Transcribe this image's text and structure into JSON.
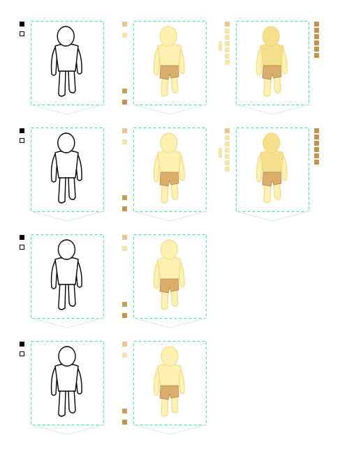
{
  "colors": {
    "background": "#ffffff",
    "frame": "#4ee89a",
    "floor": "#d9e6e0",
    "outline": "#000000",
    "skin": "#fff1b2",
    "skin_shade": "#f6df8c",
    "skin_dark": "#e9c96a",
    "skin_stroke": "#f0d47a",
    "shorts": "#d8ae6a",
    "shorts_dark": "#b9893f",
    "swatch_light": "#f4e6a8",
    "swatch_tan": "#e9c68e",
    "swatch_brown": "#c99c5a",
    "swatch_dark": "#c1934f"
  },
  "rows": [
    {
      "name": "row-1",
      "figures": [
        {
          "style": "outline",
          "pose": "front-left",
          "shorts": false
        },
        {
          "style": "skin",
          "pose": "front-left",
          "shorts": true
        },
        {
          "style": "skin-shaded",
          "pose": "front-left",
          "shorts": true
        }
      ]
    },
    {
      "name": "row-2",
      "figures": [
        {
          "style": "outline",
          "pose": "left",
          "shorts": false
        },
        {
          "style": "skin",
          "pose": "left",
          "shorts": true
        },
        {
          "style": "skin-shaded",
          "pose": "left",
          "shorts": true
        }
      ]
    },
    {
      "name": "row-3",
      "figures": [
        {
          "style": "outline",
          "pose": "back-left",
          "shorts": false
        },
        {
          "style": "skin",
          "pose": "back-left",
          "shorts": true
        }
      ]
    },
    {
      "name": "row-4",
      "figures": [
        {
          "style": "outline",
          "pose": "back",
          "shorts": false
        },
        {
          "style": "skin",
          "pose": "back",
          "shorts": true
        }
      ]
    }
  ],
  "palette_icons": [
    "filled-square-icon",
    "empty-square-icon"
  ]
}
